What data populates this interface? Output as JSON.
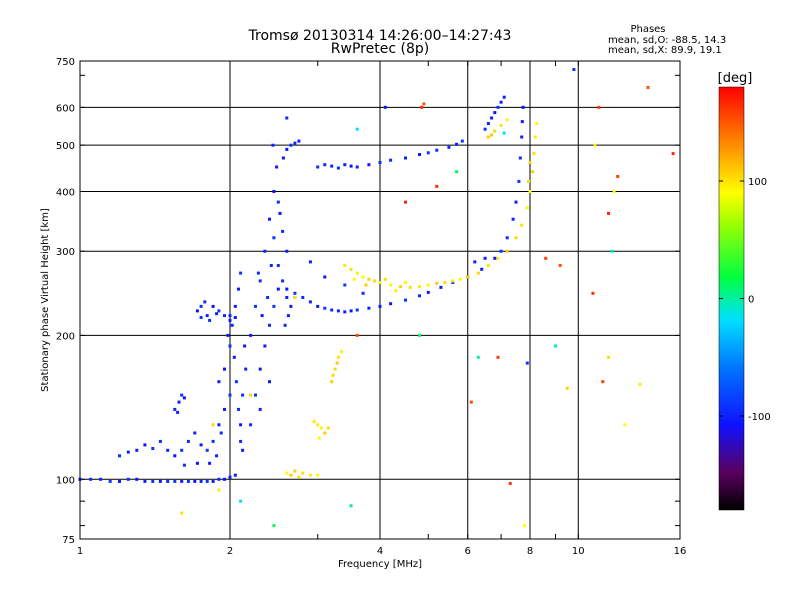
{
  "chart_data": {
    "type": "scatter",
    "title": "Tromsø 20130314 14:26:00–14:27:43",
    "subtitle": "RwPretec (8p)",
    "xlabel": "Frequency [MHz]",
    "ylabel": "Stationary phase Virtual Height [km]",
    "x_scale": "log",
    "y_scale": "log",
    "xlim": [
      1,
      16
    ],
    "ylim": [
      75,
      750
    ],
    "x_ticks": [
      1,
      2,
      4,
      6,
      8,
      10,
      16
    ],
    "x_tick_labels": [
      "1",
      "2",
      "4",
      "6",
      "8",
      "10",
      "16"
    ],
    "y_ticks": [
      75,
      100,
      200,
      300,
      400,
      500,
      600,
      750
    ],
    "y_tick_labels": [
      "75",
      "100",
      "200",
      "300",
      "400",
      "500",
      "600",
      "750"
    ],
    "grid": true,
    "stats": {
      "header": "Phases",
      "line_O": "mean, sd,O: -88.5, 14.3",
      "line_X": "mean, sd,X:  89.9, 19.1"
    },
    "colorbar": {
      "label": "[deg]",
      "range": [
        -180,
        180
      ],
      "ticks": [
        100,
        0,
        -100
      ],
      "tick_labels": [
        "100",
        "0",
        "-100"
      ]
    },
    "colors": {
      "o_mode": "#1f3fd8",
      "x_mode": "#e8e800",
      "grid": "#000000"
    },
    "series": [
      {
        "mode": "O",
        "phase": -100,
        "points": [
          [
            1.0,
            100
          ],
          [
            1.05,
            100
          ],
          [
            1.1,
            100
          ],
          [
            1.2,
            99
          ],
          [
            1.3,
            100
          ],
          [
            1.4,
            99
          ],
          [
            1.5,
            99
          ],
          [
            1.6,
            99
          ],
          [
            1.7,
            99
          ],
          [
            1.8,
            99
          ],
          [
            1.9,
            100
          ],
          [
            2.0,
            101
          ],
          [
            2.05,
            102
          ],
          [
            1.15,
            99
          ],
          [
            1.25,
            100
          ],
          [
            1.35,
            99
          ],
          [
            1.45,
            99
          ],
          [
            1.55,
            99
          ],
          [
            1.65,
            99
          ],
          [
            1.75,
            99
          ],
          [
            1.85,
            99
          ],
          [
            1.95,
            100
          ],
          [
            1.2,
            112
          ],
          [
            1.25,
            114
          ],
          [
            1.3,
            115
          ],
          [
            1.35,
            118
          ],
          [
            1.4,
            116
          ],
          [
            1.45,
            120
          ],
          [
            1.5,
            115
          ],
          [
            1.55,
            112
          ],
          [
            1.6,
            115
          ],
          [
            1.65,
            120
          ],
          [
            1.7,
            125
          ],
          [
            1.75,
            118
          ],
          [
            1.8,
            115
          ],
          [
            1.85,
            120
          ],
          [
            1.9,
            130
          ],
          [
            1.95,
            140
          ],
          [
            2.0,
            150
          ],
          [
            1.92,
            125
          ],
          [
            1.88,
            112
          ],
          [
            1.82,
            108
          ],
          [
            1.72,
            108
          ],
          [
            1.62,
            107
          ],
          [
            1.55,
            140
          ],
          [
            1.58,
            145
          ],
          [
            1.62,
            148
          ],
          [
            1.6,
            150
          ],
          [
            1.57,
            138
          ],
          [
            1.9,
            160
          ],
          [
            1.95,
            170
          ],
          [
            2.0,
            190
          ],
          [
            2.02,
            210
          ],
          [
            2.05,
            230
          ],
          [
            2.08,
            250
          ],
          [
            2.1,
            270
          ],
          [
            2.0,
            220
          ],
          [
            1.98,
            200
          ],
          [
            2.04,
            180
          ],
          [
            2.06,
            160
          ],
          [
            2.08,
            140
          ],
          [
            2.1,
            120
          ],
          [
            2.12,
            115
          ],
          [
            2.1,
            130
          ],
          [
            2.12,
            150
          ],
          [
            2.15,
            170
          ],
          [
            2.14,
            190
          ],
          [
            1.72,
            225
          ],
          [
            1.75,
            230
          ],
          [
            1.78,
            235
          ],
          [
            1.8,
            220
          ],
          [
            1.85,
            230
          ],
          [
            1.9,
            225
          ],
          [
            1.95,
            220
          ],
          [
            2.0,
            215
          ],
          [
            2.05,
            218
          ],
          [
            1.75,
            218
          ],
          [
            1.82,
            215
          ],
          [
            1.88,
            222
          ],
          [
            2.2,
            200
          ],
          [
            2.25,
            230
          ],
          [
            2.3,
            260
          ],
          [
            2.35,
            300
          ],
          [
            2.4,
            350
          ],
          [
            2.45,
            400
          ],
          [
            2.5,
            380
          ],
          [
            2.55,
            330
          ],
          [
            2.6,
            300
          ],
          [
            2.5,
            250
          ],
          [
            2.45,
            230
          ],
          [
            2.4,
            210
          ],
          [
            2.35,
            190
          ],
          [
            2.3,
            170
          ],
          [
            2.25,
            150
          ],
          [
            2.2,
            130
          ],
          [
            2.3,
            140
          ],
          [
            2.4,
            160
          ],
          [
            2.5,
            280
          ],
          [
            2.55,
            260
          ],
          [
            2.6,
            240
          ],
          [
            2.65,
            230
          ],
          [
            2.7,
            240
          ],
          [
            2.45,
            320
          ],
          [
            2.42,
            280
          ],
          [
            2.48,
            450
          ],
          [
            2.52,
            360
          ],
          [
            2.38,
            240
          ],
          [
            2.58,
            210
          ],
          [
            2.62,
            220
          ],
          [
            2.32,
            220
          ],
          [
            2.28,
            270
          ],
          [
            2.44,
            500
          ],
          [
            2.56,
            470
          ],
          [
            2.6,
            490
          ],
          [
            2.65,
            500
          ],
          [
            2.7,
            505
          ],
          [
            2.75,
            510
          ],
          [
            2.6,
            250
          ],
          [
            2.7,
            245
          ],
          [
            2.8,
            240
          ],
          [
            2.9,
            235
          ],
          [
            3.0,
            230
          ],
          [
            3.1,
            228
          ],
          [
            3.2,
            226
          ],
          [
            3.3,
            225
          ],
          [
            3.4,
            224
          ],
          [
            3.5,
            225
          ],
          [
            3.6,
            226
          ],
          [
            3.8,
            228
          ],
          [
            4.0,
            230
          ],
          [
            4.2,
            233
          ],
          [
            4.5,
            237
          ],
          [
            4.8,
            242
          ],
          [
            5.0,
            246
          ],
          [
            5.3,
            252
          ],
          [
            5.6,
            258
          ],
          [
            6.0,
            265
          ],
          [
            6.4,
            275
          ],
          [
            6.8,
            290
          ],
          [
            7.0,
            300
          ],
          [
            7.2,
            320
          ],
          [
            7.4,
            350
          ],
          [
            7.5,
            380
          ],
          [
            7.6,
            420
          ],
          [
            7.65,
            470
          ],
          [
            7.7,
            520
          ],
          [
            7.72,
            560
          ],
          [
            7.75,
            600
          ],
          [
            3.0,
            450
          ],
          [
            3.2,
            452
          ],
          [
            3.4,
            455
          ],
          [
            3.5,
            452
          ],
          [
            3.3,
            448
          ],
          [
            3.1,
            455
          ],
          [
            3.6,
            450
          ],
          [
            3.8,
            455
          ],
          [
            4.0,
            460
          ],
          [
            4.2,
            465
          ],
          [
            4.5,
            470
          ],
          [
            4.8,
            478
          ],
          [
            5.0,
            482
          ],
          [
            5.2,
            488
          ],
          [
            5.5,
            495
          ],
          [
            5.7,
            502
          ],
          [
            5.85,
            510
          ],
          [
            6.5,
            540
          ],
          [
            6.6,
            555
          ],
          [
            6.7,
            570
          ],
          [
            6.8,
            585
          ],
          [
            6.9,
            600
          ],
          [
            7.0,
            615
          ],
          [
            7.1,
            630
          ],
          [
            4.1,
            600
          ],
          [
            9.8,
            720
          ],
          [
            2.6,
            570
          ],
          [
            2.9,
            285
          ],
          [
            3.1,
            265
          ],
          [
            3.4,
            255
          ],
          [
            3.7,
            245
          ],
          [
            6.2,
            285
          ],
          [
            6.5,
            290
          ],
          [
            7.9,
            175
          ]
        ]
      },
      {
        "mode": "X",
        "phase": 100,
        "points": [
          [
            2.6,
            103
          ],
          [
            2.7,
            104
          ],
          [
            2.8,
            103
          ],
          [
            2.9,
            102
          ],
          [
            3.0,
            102
          ],
          [
            2.65,
            102
          ],
          [
            2.75,
            101
          ],
          [
            3.0,
            130
          ],
          [
            3.05,
            128
          ],
          [
            3.1,
            125
          ],
          [
            3.15,
            128
          ],
          [
            2.95,
            132
          ],
          [
            3.02,
            122
          ],
          [
            3.2,
            160
          ],
          [
            3.25,
            170
          ],
          [
            3.3,
            180
          ],
          [
            3.35,
            185
          ],
          [
            3.28,
            175
          ],
          [
            3.22,
            165
          ],
          [
            3.5,
            275
          ],
          [
            3.6,
            270
          ],
          [
            3.7,
            265
          ],
          [
            3.8,
            262
          ],
          [
            3.9,
            260
          ],
          [
            4.0,
            258
          ],
          [
            4.2,
            255
          ],
          [
            4.4,
            253
          ],
          [
            4.6,
            252
          ],
          [
            4.8,
            253
          ],
          [
            5.0,
            255
          ],
          [
            5.2,
            257
          ],
          [
            5.4,
            258
          ],
          [
            5.6,
            260
          ],
          [
            5.8,
            262
          ],
          [
            6.0,
            265
          ],
          [
            6.3,
            270
          ],
          [
            6.6,
            280
          ],
          [
            6.9,
            290
          ],
          [
            7.2,
            300
          ],
          [
            7.5,
            320
          ],
          [
            7.7,
            340
          ],
          [
            7.9,
            370
          ],
          [
            8.0,
            400
          ],
          [
            8.1,
            440
          ],
          [
            8.15,
            480
          ],
          [
            8.2,
            520
          ],
          [
            8.25,
            555
          ],
          [
            8.0,
            460
          ],
          [
            7.95,
            420
          ],
          [
            3.4,
            280
          ],
          [
            3.55,
            262
          ],
          [
            3.75,
            255
          ],
          [
            4.1,
            262
          ],
          [
            4.3,
            248
          ],
          [
            4.5,
            258
          ],
          [
            6.6,
            520
          ],
          [
            6.8,
            535
          ],
          [
            7.0,
            550
          ],
          [
            7.2,
            565
          ],
          [
            6.7,
            525
          ],
          [
            1.85,
            130
          ],
          [
            1.6,
            85
          ],
          [
            1.9,
            95
          ],
          [
            7.8,
            80
          ],
          [
            9.5,
            155
          ],
          [
            11.5,
            180
          ],
          [
            13.3,
            158
          ],
          [
            12.4,
            130
          ],
          [
            2.2,
            150
          ],
          [
            2.7,
            240
          ],
          [
            10.8,
            500
          ],
          [
            11.8,
            400
          ]
        ]
      },
      {
        "mode": "other",
        "phase": 160,
        "points": [
          [
            4.9,
            610
          ],
          [
            4.85,
            600
          ],
          [
            11.0,
            600
          ],
          [
            12.0,
            430
          ],
          [
            13.8,
            660
          ],
          [
            15.5,
            480
          ],
          [
            7.3,
            98
          ],
          [
            8.6,
            290
          ],
          [
            9.2,
            280
          ],
          [
            11.5,
            360
          ],
          [
            10.7,
            245
          ],
          [
            11.2,
            160
          ],
          [
            3.6,
            200
          ],
          [
            4.5,
            380
          ],
          [
            5.2,
            410
          ],
          [
            6.9,
            180
          ],
          [
            6.1,
            145
          ]
        ]
      },
      {
        "mode": "misc",
        "phase": -10,
        "points": [
          [
            3.6,
            540
          ],
          [
            4.8,
            200
          ],
          [
            6.3,
            180
          ],
          [
            9.0,
            190
          ],
          [
            2.1,
            90
          ],
          [
            2.45,
            80
          ],
          [
            3.5,
            88
          ],
          [
            11.7,
            300
          ],
          [
            7.1,
            530
          ],
          [
            5.7,
            440
          ]
        ]
      }
    ]
  }
}
